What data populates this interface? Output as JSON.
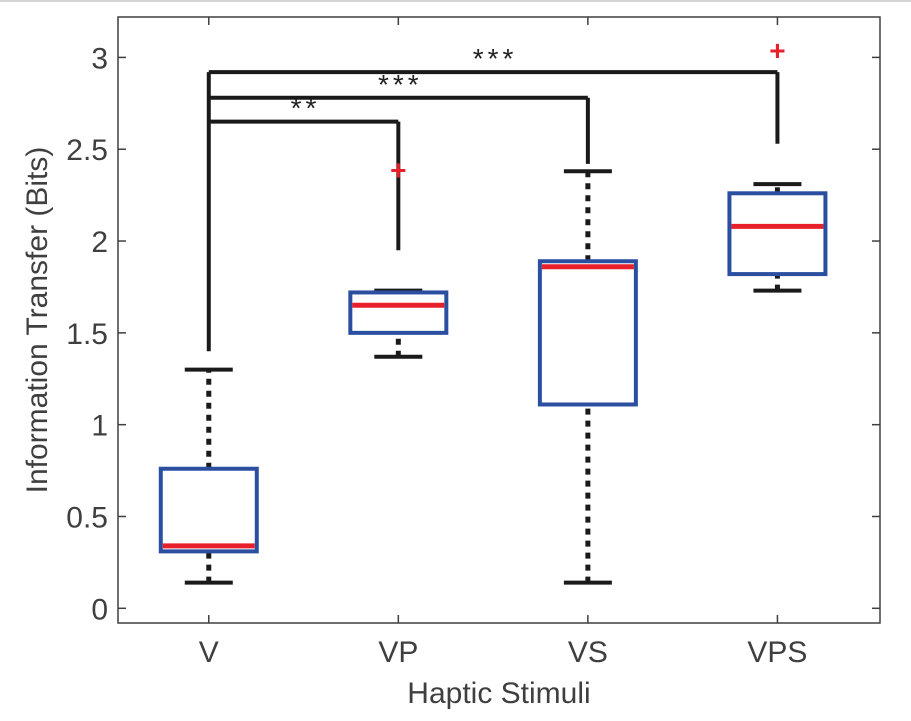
{
  "chart_data": {
    "type": "box",
    "title": "",
    "xlabel": "Haptic Stimuli",
    "ylabel": "Information Transfer (Bits)",
    "ylim": [
      -0.08,
      3.22
    ],
    "yticks": [
      "0",
      "0.5",
      "1",
      "1.5",
      "2",
      "2.5",
      "3"
    ],
    "yticks_values": [
      0,
      0.5,
      1,
      1.5,
      2,
      2.5,
      3
    ],
    "categories": [
      "V",
      "VP",
      "VS",
      "VPS"
    ],
    "boxes": [
      {
        "label": "V",
        "whisker_low": 0.14,
        "q1": 0.31,
        "median": 0.34,
        "q3": 0.76,
        "whisker_high": 1.3,
        "outliers": []
      },
      {
        "label": "VP",
        "whisker_low": 1.37,
        "q1": 1.5,
        "median": 1.65,
        "q3": 1.72,
        "whisker_high": 1.73,
        "outliers": [
          2.39
        ]
      },
      {
        "label": "VS",
        "whisker_low": 0.14,
        "q1": 1.11,
        "median": 1.86,
        "q3": 1.89,
        "whisker_high": 2.38,
        "outliers": []
      },
      {
        "label": "VPS",
        "whisker_low": 1.73,
        "q1": 1.82,
        "median": 2.08,
        "q3": 2.26,
        "whisker_high": 2.31,
        "outliers": [
          3.04
        ]
      }
    ],
    "significance": [
      {
        "from": "V",
        "to": "VP",
        "label": "**"
      },
      {
        "from": "V",
        "to": "VS",
        "label": "***"
      },
      {
        "from": "V",
        "to": "VPS",
        "label": "***"
      }
    ],
    "grid": false,
    "colors": {
      "box": "#2b4fa0",
      "median": "#e8202a",
      "whisker": "#1a1a1a",
      "outlier": "#e8202a",
      "axis": "#3f3f3f",
      "bracket": "#1a1a1a"
    }
  }
}
